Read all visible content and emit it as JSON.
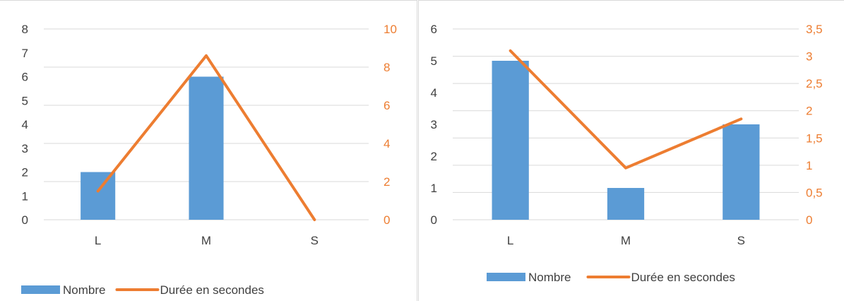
{
  "colors": {
    "bar": "#5B9BD5",
    "line": "#ED7D31",
    "grid": "#d9d9d9",
    "text": "#404040"
  },
  "chart_data": [
    {
      "type": "bar",
      "combo_with": "line",
      "categories": [
        "L",
        "M",
        "S"
      ],
      "series": [
        {
          "name": "Nombre",
          "type": "bar",
          "axis": "left",
          "values": [
            2,
            6,
            0
          ]
        },
        {
          "name": "Durée en secondes",
          "type": "line",
          "axis": "right",
          "values": [
            1.5,
            8.6,
            0
          ]
        }
      ],
      "left_axis": {
        "ylim": [
          0,
          8
        ],
        "ticks": [
          "0",
          "1",
          "2",
          "3",
          "4",
          "5",
          "6",
          "7",
          "8"
        ]
      },
      "right_axis": {
        "ylim": [
          0,
          10
        ],
        "ticks": [
          "0",
          "2",
          "4",
          "6",
          "8",
          "10"
        ]
      },
      "grid": true,
      "legend_position": "bottom-left"
    },
    {
      "type": "bar",
      "combo_with": "line",
      "categories": [
        "L",
        "M",
        "S"
      ],
      "series": [
        {
          "name": "Nombre",
          "type": "bar",
          "axis": "left",
          "values": [
            5,
            1,
            3
          ]
        },
        {
          "name": "Durée en secondes",
          "type": "line",
          "axis": "right",
          "values": [
            3.1,
            0.95,
            1.85
          ]
        }
      ],
      "left_axis": {
        "ylim": [
          0,
          6
        ],
        "ticks": [
          "0",
          "1",
          "2",
          "3",
          "4",
          "5",
          "6"
        ]
      },
      "right_axis": {
        "ylim": [
          0,
          3.5
        ],
        "ticks": [
          "0",
          "0,5",
          "1",
          "1,5",
          "2",
          "2,5",
          "3",
          "3,5"
        ]
      },
      "grid": true,
      "legend_position": "bottom-center"
    }
  ]
}
